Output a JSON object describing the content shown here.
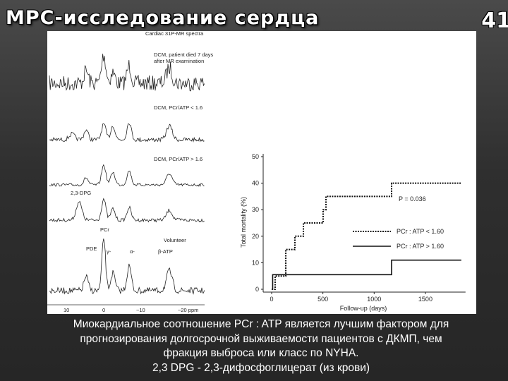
{
  "header": {
    "title": "МРС-исследование сердца",
    "page_number": "41"
  },
  "spectra": {
    "title": "Cardiac 31P-MR spectra",
    "labels": [
      "DCM, patient died 7 days",
      "after MR examination",
      "DCM, PCr/ATP < 1.6",
      "DCM, PCr/ATP > 1.6",
      "2,3-DPG",
      "PCr",
      "Volunteer",
      "PDE",
      "γ-",
      "α-",
      "β-ATP"
    ],
    "axis_ticks": [
      "10",
      "0",
      "−10",
      "−20 ppm"
    ]
  },
  "chart_data": {
    "type": "step",
    "x_label": "Follow-up (days)",
    "y_label": "Total mortality (%)",
    "annotation": "P = 0.036",
    "x": [
      0,
      10,
      34,
      138,
      227,
      310,
      502,
      530,
      1170,
      1850
    ],
    "series": [
      {
        "name": "PCr : ATP < 1.60",
        "color": "#111111",
        "dash": "dotted",
        "values": [
          0,
          0,
          5,
          15,
          20,
          25,
          30,
          35,
          40,
          40
        ]
      },
      {
        "name": "PCr : ATP > 1.60",
        "color": "#111111",
        "dash": "solid",
        "values": [
          0,
          5.5,
          5.5,
          5.5,
          5.5,
          5.5,
          5.5,
          5.5,
          11,
          11
        ]
      }
    ],
    "xlim": [
      0,
      1850
    ],
    "ylim": [
      0,
      50
    ],
    "xticks": [
      0,
      500,
      1000,
      1500
    ],
    "yticks": [
      0,
      10,
      20,
      30,
      40,
      50
    ]
  },
  "caption": [
    "Миокардиальное соотношение PCr : ATP является лучшим фактором для",
    "прогнозирования долгосрочной выживаемости пациентов с ДКМП, чем",
    "фракция выброса или класс по NYHA.",
    "2,3 DPG  - 2,3-дифосфоглицерат (из крови)"
  ]
}
